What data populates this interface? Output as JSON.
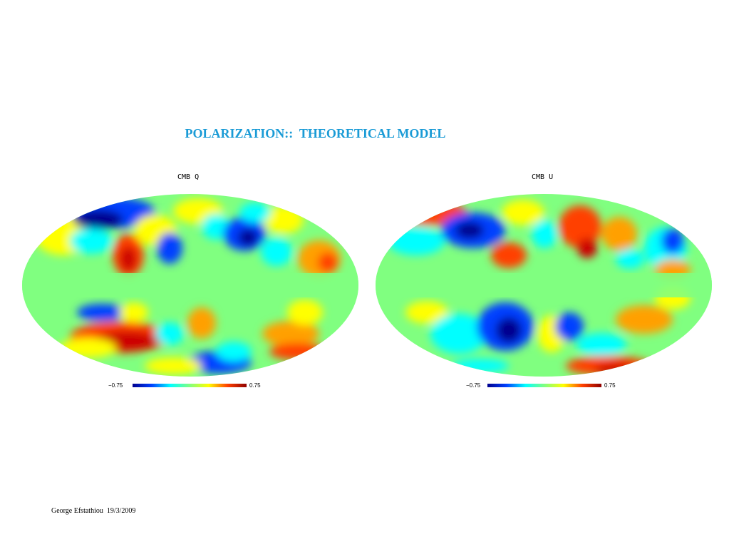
{
  "slide": {
    "title": "POLARIZATION::  THEORETICAL MODEL",
    "title_color": "#1a9bd6",
    "footer": "George Efstathiou  19/3/2009"
  },
  "maps": [
    {
      "label": "CMB Q",
      "colorbar_min": "−0.75",
      "colorbar_max": "0.75"
    },
    {
      "label": "CMB U",
      "colorbar_min": "−0.75",
      "colorbar_max": "0.75"
    }
  ],
  "colors": {
    "background_field": "#80ff80",
    "colormap": [
      "#00008f",
      "#0040ff",
      "#00ffff",
      "#80ff80",
      "#ffff00",
      "#ff4000",
      "#8f0000"
    ]
  }
}
